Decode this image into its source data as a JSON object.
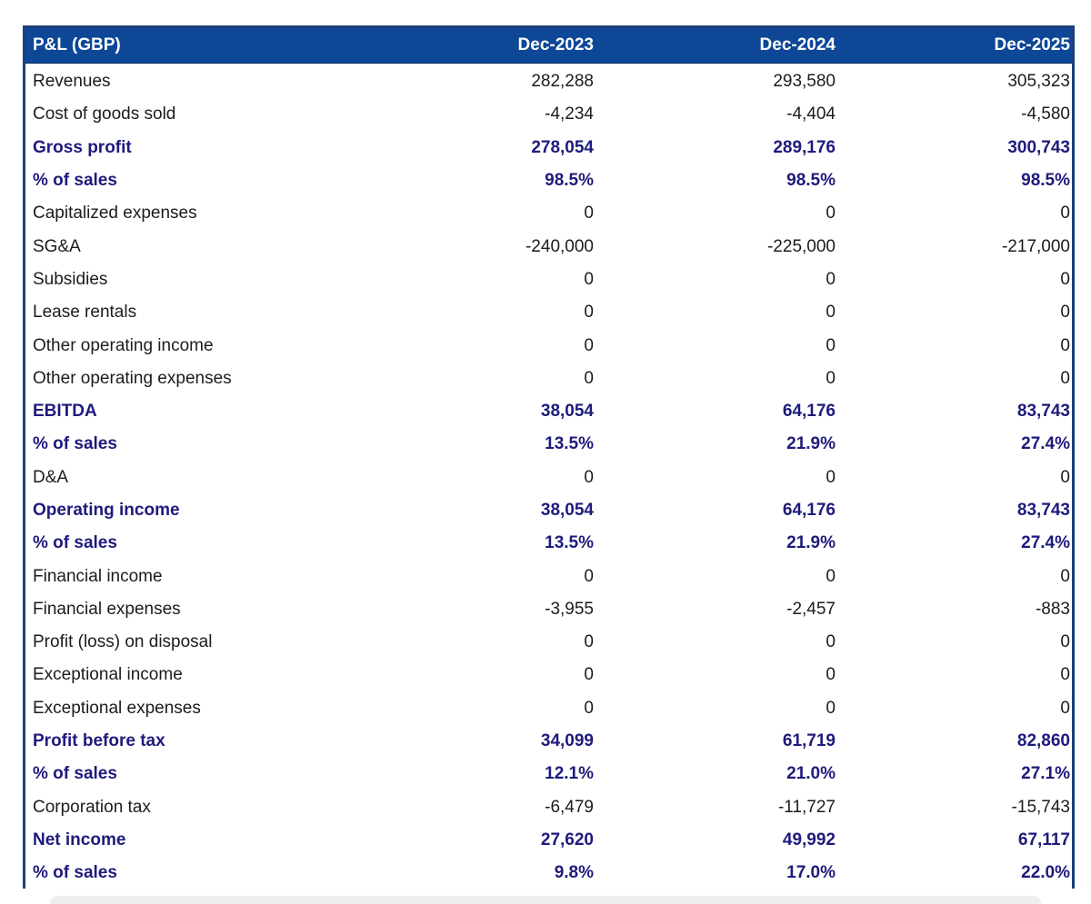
{
  "table": {
    "title": "P&L (GBP)",
    "columns": [
      "Dec-2023",
      "Dec-2024",
      "Dec-2025"
    ],
    "rows": [
      {
        "label": "Revenues",
        "values": [
          "282,288",
          "293,580",
          "305,323"
        ],
        "emphasis": false
      },
      {
        "label": "Cost of goods sold",
        "values": [
          "-4,234",
          "-4,404",
          "-4,580"
        ],
        "emphasis": false
      },
      {
        "label": "Gross profit",
        "values": [
          "278,054",
          "289,176",
          "300,743"
        ],
        "emphasis": true
      },
      {
        "label": "% of sales",
        "values": [
          "98.5%",
          "98.5%",
          "98.5%"
        ],
        "emphasis": true
      },
      {
        "label": "Capitalized expenses",
        "values": [
          "0",
          "0",
          "0"
        ],
        "emphasis": false
      },
      {
        "label": "SG&A",
        "values": [
          "-240,000",
          "-225,000",
          "-217,000"
        ],
        "emphasis": false
      },
      {
        "label": "Subsidies",
        "values": [
          "0",
          "0",
          "0"
        ],
        "emphasis": false
      },
      {
        "label": "Lease rentals",
        "values": [
          "0",
          "0",
          "0"
        ],
        "emphasis": false
      },
      {
        "label": "Other operating income",
        "values": [
          "0",
          "0",
          "0"
        ],
        "emphasis": false
      },
      {
        "label": "Other operating expenses",
        "values": [
          "0",
          "0",
          "0"
        ],
        "emphasis": false
      },
      {
        "label": "EBITDA",
        "values": [
          "38,054",
          "64,176",
          "83,743"
        ],
        "emphasis": true
      },
      {
        "label": "% of sales",
        "values": [
          "13.5%",
          "21.9%",
          "27.4%"
        ],
        "emphasis": true
      },
      {
        "label": "D&A",
        "values": [
          "0",
          "0",
          "0"
        ],
        "emphasis": false
      },
      {
        "label": "Operating income",
        "values": [
          "38,054",
          "64,176",
          "83,743"
        ],
        "emphasis": true
      },
      {
        "label": "% of sales",
        "values": [
          "13.5%",
          "21.9%",
          "27.4%"
        ],
        "emphasis": true
      },
      {
        "label": "Financial income",
        "values": [
          "0",
          "0",
          "0"
        ],
        "emphasis": false
      },
      {
        "label": "Financial expenses",
        "values": [
          "-3,955",
          "-2,457",
          "-883"
        ],
        "emphasis": false
      },
      {
        "label": "Profit (loss) on disposal",
        "values": [
          "0",
          "0",
          "0"
        ],
        "emphasis": false
      },
      {
        "label": "Exceptional income",
        "values": [
          "0",
          "0",
          "0"
        ],
        "emphasis": false
      },
      {
        "label": "Exceptional expenses",
        "values": [
          "0",
          "0",
          "0"
        ],
        "emphasis": false
      },
      {
        "label": "Profit before tax",
        "values": [
          "34,099",
          "61,719",
          "82,860"
        ],
        "emphasis": true
      },
      {
        "label": "% of sales",
        "values": [
          "12.1%",
          "21.0%",
          "27.1%"
        ],
        "emphasis": true
      },
      {
        "label": "Corporation tax",
        "values": [
          "-6,479",
          "-11,727",
          "-15,743"
        ],
        "emphasis": false
      },
      {
        "label": "Net income",
        "values": [
          "27,620",
          "49,992",
          "67,117"
        ],
        "emphasis": true
      },
      {
        "label": "% of sales",
        "values": [
          "9.8%",
          "17.0%",
          "22.0%"
        ],
        "emphasis": true
      }
    ]
  },
  "colors": {
    "header_bg": "#0d4796",
    "table_border": "#1a3f7d",
    "emphasis_text": "#1e1b7c",
    "body_text": "#1c1c1c",
    "header_text": "#ffffff",
    "bottom_bar": "#efeff0"
  },
  "chart_data": {
    "type": "table",
    "title": "P&L (GBP)",
    "categories": [
      "Dec-2023",
      "Dec-2024",
      "Dec-2025"
    ],
    "series": [
      {
        "name": "Revenues",
        "values": [
          282288,
          293580,
          305323
        ]
      },
      {
        "name": "Cost of goods sold",
        "values": [
          -4234,
          -4404,
          -4580
        ]
      },
      {
        "name": "Gross profit",
        "values": [
          278054,
          289176,
          300743
        ]
      },
      {
        "name": "Gross profit % of sales",
        "values": [
          "98.5%",
          "98.5%",
          "98.5%"
        ]
      },
      {
        "name": "Capitalized expenses",
        "values": [
          0,
          0,
          0
        ]
      },
      {
        "name": "SG&A",
        "values": [
          -240000,
          -225000,
          -217000
        ]
      },
      {
        "name": "Subsidies",
        "values": [
          0,
          0,
          0
        ]
      },
      {
        "name": "Lease rentals",
        "values": [
          0,
          0,
          0
        ]
      },
      {
        "name": "Other operating income",
        "values": [
          0,
          0,
          0
        ]
      },
      {
        "name": "Other operating expenses",
        "values": [
          0,
          0,
          0
        ]
      },
      {
        "name": "EBITDA",
        "values": [
          38054,
          64176,
          83743
        ]
      },
      {
        "name": "EBITDA % of sales",
        "values": [
          "13.5%",
          "21.9%",
          "27.4%"
        ]
      },
      {
        "name": "D&A",
        "values": [
          0,
          0,
          0
        ]
      },
      {
        "name": "Operating income",
        "values": [
          38054,
          64176,
          83743
        ]
      },
      {
        "name": "Operating income % of sales",
        "values": [
          "13.5%",
          "21.9%",
          "27.4%"
        ]
      },
      {
        "name": "Financial income",
        "values": [
          0,
          0,
          0
        ]
      },
      {
        "name": "Financial expenses",
        "values": [
          -3955,
          -2457,
          -883
        ]
      },
      {
        "name": "Profit (loss) on disposal",
        "values": [
          0,
          0,
          0
        ]
      },
      {
        "name": "Exceptional income",
        "values": [
          0,
          0,
          0
        ]
      },
      {
        "name": "Exceptional expenses",
        "values": [
          0,
          0,
          0
        ]
      },
      {
        "name": "Profit before tax",
        "values": [
          34099,
          61719,
          82860
        ]
      },
      {
        "name": "Profit before tax % of sales",
        "values": [
          "12.1%",
          "21.0%",
          "27.1%"
        ]
      },
      {
        "name": "Corporation tax",
        "values": [
          -6479,
          -11727,
          -15743
        ]
      },
      {
        "name": "Net income",
        "values": [
          27620,
          49992,
          67117
        ]
      },
      {
        "name": "Net income % of sales",
        "values": [
          "9.8%",
          "17.0%",
          "22.0%"
        ]
      }
    ]
  }
}
